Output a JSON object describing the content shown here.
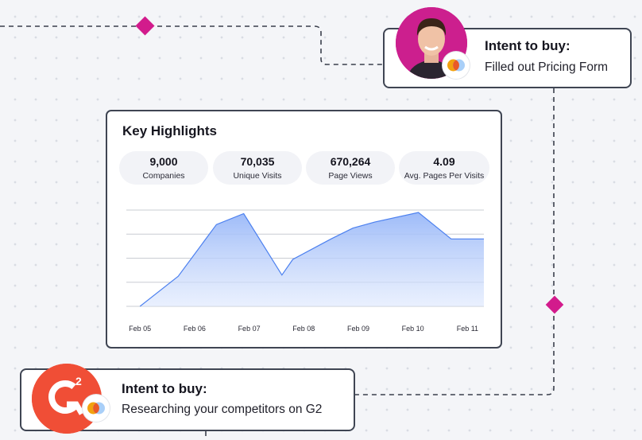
{
  "intent_top": {
    "title": "Intent to buy:",
    "subtitle": "Filled out Pricing Form",
    "avatar_icon": "person-avatar",
    "badge_icon": "overlapping-circles-logo"
  },
  "key_highlights": {
    "title": "Key Highlights",
    "stats": [
      {
        "value": "9,000",
        "label": "Companies"
      },
      {
        "value": "70,035",
        "label": "Unique Visits"
      },
      {
        "value": "670,264",
        "label": "Page Views"
      },
      {
        "value": "4.09",
        "label": "Avg. Pages Per Visits"
      }
    ],
    "chart_data": {
      "type": "area",
      "title": "",
      "xlabel": "",
      "ylabel": "",
      "categories": [
        "Feb 05",
        "Feb 06",
        "Feb 07",
        "Feb 08",
        "Feb 09",
        "Feb 10",
        "Feb 11"
      ],
      "x": [
        5,
        5.7,
        6.4,
        6.9,
        7.6,
        7.8,
        8.5,
        8.9,
        9.3,
        10.1,
        10.7,
        11.3
      ],
      "y": [
        0,
        1.25,
        3.4,
        3.85,
        1.3,
        1.95,
        2.8,
        3.25,
        3.5,
        3.9,
        2.8,
        2.8
      ],
      "ylim": [
        0,
        4
      ],
      "xlim": [
        4.75,
        11.3
      ],
      "grid": true,
      "accent_color": "#4c80ef",
      "fill_color": "#9fbdfa"
    }
  },
  "intent_bottom": {
    "title": "Intent to buy:",
    "subtitle": "Researching your competitors on G2",
    "logo_icon": "g2-logo",
    "badge_icon": "overlapping-circles-logo"
  }
}
